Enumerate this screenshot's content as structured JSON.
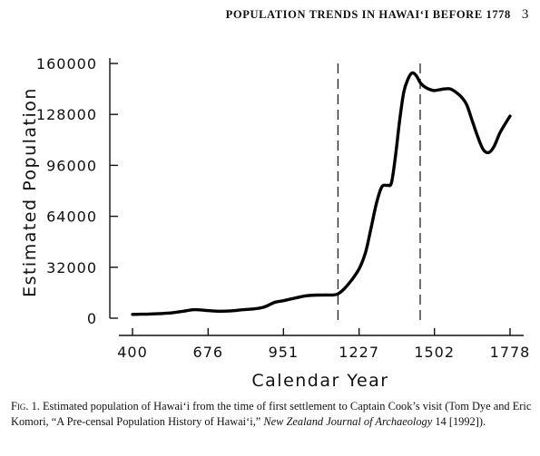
{
  "page_header": {
    "running_title": "POPULATION TRENDS IN HAWAI‘I BEFORE 1778",
    "page_number": "3"
  },
  "chart_data": {
    "type": "line",
    "xlabel": "Calendar Year",
    "ylabel": "Estimated Population",
    "x_ticks": [
      "400",
      "676",
      "951",
      "1227",
      "1502",
      "1778"
    ],
    "y_ticks": [
      "0",
      "32000",
      "64000",
      "96000",
      "128000",
      "160000"
    ],
    "xlim": [
      400,
      1778
    ],
    "ylim": [
      0,
      160000
    ],
    "vertical_reference_lines": [
      1150,
      1450
    ],
    "series": [
      {
        "x": [
          400,
          430,
          460,
          500,
          540,
          580,
          620,
          650,
          676,
          720,
          760,
          800,
          840,
          880,
          920,
          951,
          990,
          1030,
          1070,
          1100,
          1130,
          1150,
          1170,
          1200,
          1227,
          1250,
          1270,
          1290,
          1310,
          1330,
          1345,
          1360,
          1375,
          1390,
          1405,
          1420,
          1435,
          1450,
          1465,
          1480,
          1500,
          1520,
          1540,
          1560,
          1580,
          1600,
          1620,
          1640,
          1660,
          1680,
          1700,
          1720,
          1740,
          1760,
          1778
        ],
        "values": [
          2400,
          2500,
          2600,
          2900,
          3300,
          4200,
          5300,
          5200,
          4800,
          4400,
          4600,
          5300,
          5800,
          7000,
          10000,
          11000,
          12500,
          14000,
          14500,
          14600,
          14600,
          15300,
          18000,
          24000,
          31000,
          41000,
          56000,
          72000,
          82500,
          83500,
          85000,
          102000,
          124000,
          142000,
          150000,
          154000,
          152500,
          148000,
          145500,
          144000,
          143000,
          143500,
          144000,
          144000,
          142000,
          139000,
          134000,
          124000,
          114000,
          106000,
          104000,
          108000,
          116000,
          122000,
          127000
        ]
      }
    ]
  },
  "caption": {
    "label": "Fig. 1.",
    "text_1": " Estimated population of Hawai‘i from the time of first settlement to Captain Cook’s visit (Tom Dye and Eric Komori, “A Pre-censal Population History of Hawai‘i,” ",
    "journal": "New Zealand Journal of Archaeology",
    "text_2": " 14 [1992])."
  }
}
